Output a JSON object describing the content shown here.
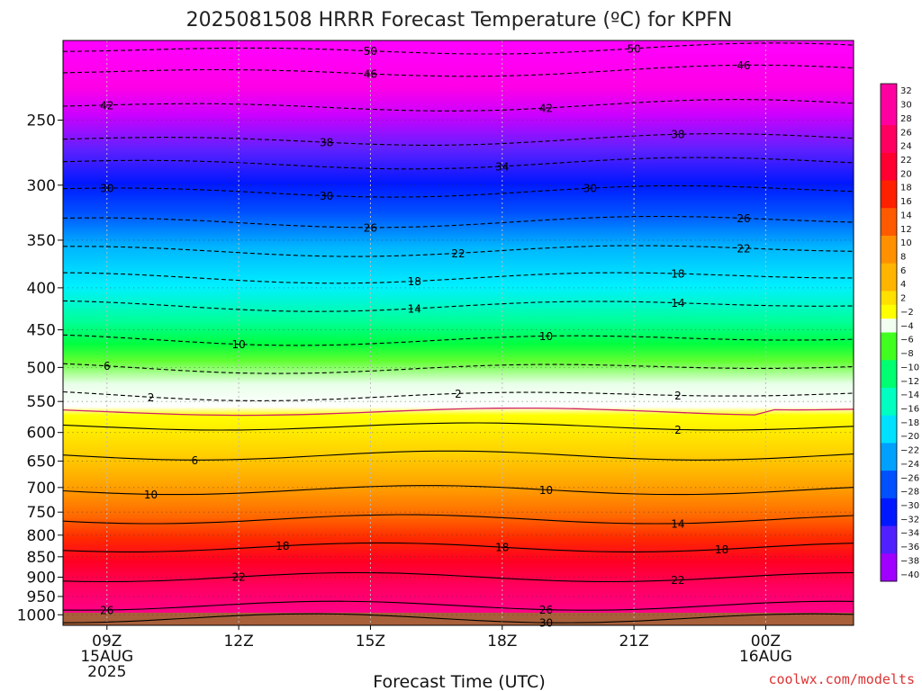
{
  "chart_data": {
    "type": "heatmap",
    "title": "2025081508 HRRR Forecast Temperature (ºC) for KPFN",
    "xlabel": "Forecast Time (UTC)",
    "ylabel": "",
    "credit": "coolwx.com/modelts",
    "y_scale": "log-pressure",
    "y_reversed": true,
    "y_range": [
      200,
      1030
    ],
    "x_range_hours": [
      -1,
      17
    ],
    "x_ticks": [
      {
        "hour": 0,
        "lines": [
          "09Z",
          "15AUG",
          "2025"
        ]
      },
      {
        "hour": 3,
        "lines": [
          "12Z"
        ]
      },
      {
        "hour": 6,
        "lines": [
          "15Z"
        ]
      },
      {
        "hour": 9,
        "lines": [
          "18Z"
        ]
      },
      {
        "hour": 12,
        "lines": [
          "21Z"
        ]
      },
      {
        "hour": 15,
        "lines": [
          "00Z",
          "16AUG"
        ]
      }
    ],
    "y_ticks": [
      250,
      300,
      350,
      400,
      450,
      500,
      550,
      600,
      650,
      700,
      750,
      800,
      850,
      900,
      950,
      1000
    ],
    "grid": true,
    "colorbar_values": [
      32,
      30,
      28,
      26,
      24,
      22,
      20,
      18,
      16,
      14,
      12,
      10,
      8,
      6,
      4,
      2,
      -2,
      -4,
      -6,
      -8,
      -10,
      -12,
      -14,
      -16,
      -18,
      -20,
      -22,
      -24,
      -26,
      -28,
      -30,
      -32,
      -34,
      -36,
      -38,
      -40
    ],
    "colors": {
      "ground": "#a8603a",
      "freezing_line": "#d0206a",
      "gridline": "#bbbbbb"
    },
    "isotherms": [
      {
        "temp": -50,
        "p": 205,
        "labels": [
          {
            "hour": 6,
            "text": "50"
          },
          {
            "hour": 12,
            "text": "50"
          }
        ]
      },
      {
        "temp": -46,
        "p": 218,
        "labels": [
          {
            "hour": 6,
            "text": "46"
          },
          {
            "hour": 14.5,
            "text": "46"
          }
        ]
      },
      {
        "temp": -42,
        "p": 240,
        "labels": [
          {
            "hour": 0,
            "text": "42"
          },
          {
            "hour": 10,
            "text": "42"
          }
        ]
      },
      {
        "temp": -38,
        "p": 264,
        "labels": [
          {
            "hour": 5,
            "text": "38"
          },
          {
            "hour": 13,
            "text": "38"
          }
        ]
      },
      {
        "temp": -34,
        "p": 282,
        "labels": [
          {
            "hour": 9,
            "text": "34"
          }
        ]
      },
      {
        "temp": -30,
        "p": 305,
        "labels": [
          {
            "hour": 0,
            "text": "30"
          },
          {
            "hour": 5,
            "text": "30"
          },
          {
            "hour": 11,
            "text": "30"
          }
        ]
      },
      {
        "temp": -26,
        "p": 332,
        "labels": [
          {
            "hour": 6,
            "text": "26"
          },
          {
            "hour": 14.5,
            "text": "26"
          }
        ]
      },
      {
        "temp": -22,
        "p": 360,
        "labels": [
          {
            "hour": 8,
            "text": "22"
          },
          {
            "hour": 14.5,
            "text": "22"
          }
        ]
      },
      {
        "temp": -18,
        "p": 388,
        "labels": [
          {
            "hour": 7,
            "text": "18"
          },
          {
            "hour": 13,
            "text": "18"
          }
        ]
      },
      {
        "temp": -14,
        "p": 420,
        "labels": [
          {
            "hour": 7,
            "text": "14"
          },
          {
            "hour": 13,
            "text": "14"
          }
        ]
      },
      {
        "temp": -10,
        "p": 462,
        "labels": [
          {
            "hour": 3,
            "text": "10"
          },
          {
            "hour": 10,
            "text": "10"
          }
        ]
      },
      {
        "temp": -6,
        "p": 500,
        "labels": [
          {
            "hour": 0,
            "text": "6"
          }
        ]
      },
      {
        "temp": -2,
        "p": 540,
        "labels": [
          {
            "hour": 1,
            "text": "2"
          },
          {
            "hour": 8,
            "text": "2"
          },
          {
            "hour": 13,
            "text": "2"
          }
        ]
      },
      {
        "temp": 2,
        "p": 590,
        "labels": [
          {
            "hour": 13,
            "text": "2"
          }
        ]
      },
      {
        "temp": 6,
        "p": 640,
        "labels": [
          {
            "hour": 2,
            "text": "6"
          }
        ]
      },
      {
        "temp": 10,
        "p": 705,
        "labels": [
          {
            "hour": 1,
            "text": "10"
          },
          {
            "hour": 10,
            "text": "10"
          }
        ]
      },
      {
        "temp": 14,
        "p": 765,
        "labels": [
          {
            "hour": 13,
            "text": "14"
          }
        ]
      },
      {
        "temp": 18,
        "p": 828,
        "labels": [
          {
            "hour": 4,
            "text": "18"
          },
          {
            "hour": 9,
            "text": "18"
          },
          {
            "hour": 14,
            "text": "18"
          }
        ]
      },
      {
        "temp": 22,
        "p": 900,
        "labels": [
          {
            "hour": 3,
            "text": "22"
          },
          {
            "hour": 13,
            "text": "22"
          }
        ]
      },
      {
        "temp": 26,
        "p": 975,
        "labels": [
          {
            "hour": 0,
            "text": "26"
          },
          {
            "hour": 10,
            "text": "26"
          }
        ]
      },
      {
        "temp": 30,
        "p": 1010,
        "labels": [
          {
            "hour": 10,
            "text": "30"
          }
        ]
      }
    ]
  }
}
